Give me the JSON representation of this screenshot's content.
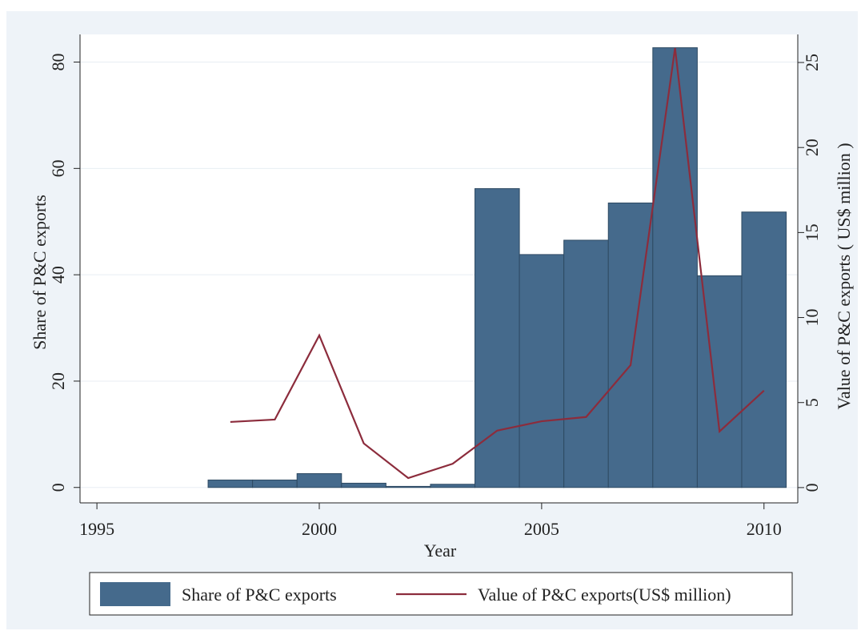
{
  "chart_data": {
    "type": "bar",
    "x_label": "Year",
    "y_label": "Share of P&C  exports",
    "y2_label": "Value of P&C  exports ( US$ million )",
    "x": [
      1998,
      1999,
      2000,
      2001,
      2002,
      2003,
      2004,
      2005,
      2006,
      2007,
      2008,
      2009,
      2010
    ],
    "series": [
      {
        "name": "Share of P&C  exports",
        "type": "bar",
        "axis": "y",
        "color": "#456a8c",
        "values": [
          1.4,
          1.4,
          2.6,
          0.8,
          0.2,
          0.6,
          56.2,
          43.8,
          46.5,
          53.5,
          82.7,
          39.8,
          51.8
        ]
      },
      {
        "name": "Value of P&C  exports(US$ million)",
        "type": "line",
        "axis": "y2",
        "color": "#8c2c3c",
        "values": [
          3.86,
          4.0,
          8.95,
          2.6,
          0.56,
          1.4,
          3.35,
          3.9,
          4.15,
          7.2,
          25.85,
          3.3,
          5.7
        ]
      }
    ],
    "xlim": [
      1994.62,
      2010.76
    ],
    "xticks": [
      1995,
      2000,
      2005,
      2010
    ],
    "ylim": [
      -2.9,
      85.2
    ],
    "yticks": [
      0,
      20,
      40,
      60,
      80
    ],
    "y2lim": [
      -0.9,
      26.65
    ],
    "y2ticks": [
      0,
      5,
      10,
      15,
      20,
      25
    ],
    "grid": true,
    "legend": "bottom"
  }
}
